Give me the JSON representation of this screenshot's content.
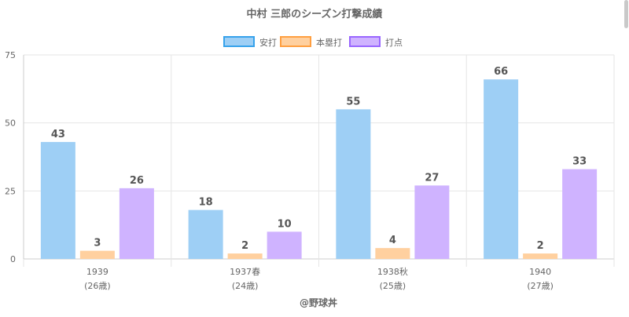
{
  "chart_data": {
    "type": "bar",
    "title": "中村 三郎のシーズン打撃成績",
    "categories": [
      "1939",
      "1937春",
      "1938秋",
      "1940"
    ],
    "category_sublabels": [
      "(26歳)",
      "(24歳)",
      "(25歳)",
      "(27歳)"
    ],
    "series": [
      {
        "name": "安打",
        "values": [
          43,
          18,
          55,
          66
        ],
        "fill": "#9ecff5",
        "stroke": "#36a2eb"
      },
      {
        "name": "本塁打",
        "values": [
          3,
          2,
          4,
          2
        ],
        "fill": "#ffd09f",
        "stroke": "#ff9f40"
      },
      {
        "name": "打点",
        "values": [
          26,
          10,
          27,
          33
        ],
        "fill": "#cfb3ff",
        "stroke": "#9966ff"
      }
    ],
    "ylim": [
      0,
      75
    ],
    "yticks": [
      0,
      25,
      50,
      75
    ],
    "grid": true,
    "legend_position": "top",
    "data_labels": true,
    "footer": "@野球丼"
  }
}
